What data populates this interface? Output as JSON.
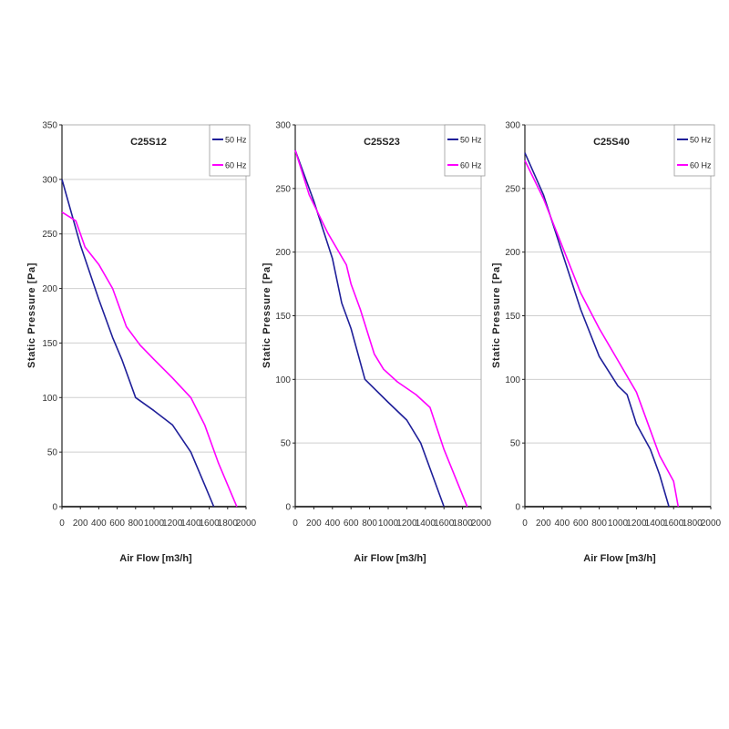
{
  "chart_data": [
    {
      "type": "line",
      "title": "C25S12",
      "xlabel": "Air Flow [m3/h]",
      "ylabel": "Static Pressure [Pa]",
      "xlim": [
        0,
        2000
      ],
      "ylim": [
        0,
        350
      ],
      "xticks": [
        "0",
        "200",
        "400",
        "600",
        "800",
        "1000",
        "1200",
        "1400",
        "1600",
        "1800",
        "2000"
      ],
      "yticks": [
        "0",
        "50",
        "100",
        "150",
        "200",
        "250",
        "300",
        "350"
      ],
      "grid": "horizontal",
      "legend": "top-right",
      "series": [
        {
          "name": "50 Hz",
          "color": "#1f1f99",
          "points": [
            [
              0,
              300
            ],
            [
              200,
              240
            ],
            [
              400,
              190
            ],
            [
              550,
              155
            ],
            [
              650,
              135
            ],
            [
              800,
              100
            ],
            [
              1000,
              88
            ],
            [
              1200,
              75
            ],
            [
              1400,
              50
            ],
            [
              1550,
              20
            ],
            [
              1650,
              0
            ]
          ]
        },
        {
          "name": "60 Hz",
          "color": "#ff00ff",
          "points": [
            [
              0,
              270
            ],
            [
              150,
              262
            ],
            [
              250,
              238
            ],
            [
              400,
              222
            ],
            [
              550,
              200
            ],
            [
              700,
              165
            ],
            [
              850,
              148
            ],
            [
              1000,
              135
            ],
            [
              1200,
              118
            ],
            [
              1400,
              100
            ],
            [
              1550,
              75
            ],
            [
              1700,
              40
            ],
            [
              1900,
              0
            ]
          ]
        }
      ]
    },
    {
      "type": "line",
      "title": "C25S23",
      "xlabel": "Air Flow [m3/h]",
      "ylabel": "Static Pressure [Pa]",
      "xlim": [
        0,
        2000
      ],
      "ylim": [
        0,
        300
      ],
      "xticks": [
        "0",
        "200",
        "400",
        "600",
        "800",
        "1000",
        "1200",
        "1400",
        "1600",
        "1800",
        "2000"
      ],
      "yticks": [
        "0",
        "50",
        "100",
        "150",
        "200",
        "250",
        "300"
      ],
      "grid": "horizontal",
      "legend": "top-right",
      "series": [
        {
          "name": "50 Hz",
          "color": "#1f1f99",
          "points": [
            [
              0,
              280
            ],
            [
              200,
              240
            ],
            [
              400,
              195
            ],
            [
              500,
              160
            ],
            [
              600,
              140
            ],
            [
              750,
              100
            ],
            [
              1000,
              82
            ],
            [
              1200,
              68
            ],
            [
              1350,
              50
            ],
            [
              1450,
              30
            ],
            [
              1600,
              0
            ]
          ]
        },
        {
          "name": "60 Hz",
          "color": "#ff00ff",
          "points": [
            [
              0,
              280
            ],
            [
              150,
              245
            ],
            [
              350,
              215
            ],
            [
              550,
              190
            ],
            [
              600,
              175
            ],
            [
              700,
              155
            ],
            [
              850,
              120
            ],
            [
              950,
              108
            ],
            [
              1100,
              98
            ],
            [
              1300,
              88
            ],
            [
              1450,
              78
            ],
            [
              1600,
              45
            ],
            [
              1850,
              0
            ]
          ]
        }
      ]
    },
    {
      "type": "line",
      "title": "C25S40",
      "xlabel": "Air Flow [m3/h]",
      "ylabel": "Static Pressure [Pa]",
      "xlim": [
        0,
        2000
      ],
      "ylim": [
        0,
        300
      ],
      "xticks": [
        "0",
        "200",
        "400",
        "600",
        "800",
        "1000",
        "1200",
        "1400",
        "1600",
        "1800",
        "2000"
      ],
      "yticks": [
        "0",
        "50",
        "100",
        "150",
        "200",
        "250",
        "300"
      ],
      "grid": "horizontal",
      "legend": "top-right",
      "series": [
        {
          "name": "50 Hz",
          "color": "#1f1f99",
          "points": [
            [
              0,
              278
            ],
            [
              200,
              245
            ],
            [
              400,
              200
            ],
            [
              600,
              155
            ],
            [
              800,
              118
            ],
            [
              1000,
              95
            ],
            [
              1100,
              88
            ],
            [
              1200,
              65
            ],
            [
              1350,
              45
            ],
            [
              1450,
              25
            ],
            [
              1550,
              0
            ]
          ]
        },
        {
          "name": "60 Hz",
          "color": "#ff00ff",
          "points": [
            [
              0,
              272
            ],
            [
              200,
              242
            ],
            [
              400,
              205
            ],
            [
              600,
              168
            ],
            [
              800,
              140
            ],
            [
              1000,
              115
            ],
            [
              1200,
              90
            ],
            [
              1350,
              60
            ],
            [
              1450,
              40
            ],
            [
              1600,
              20
            ],
            [
              1650,
              0
            ]
          ]
        }
      ]
    }
  ]
}
